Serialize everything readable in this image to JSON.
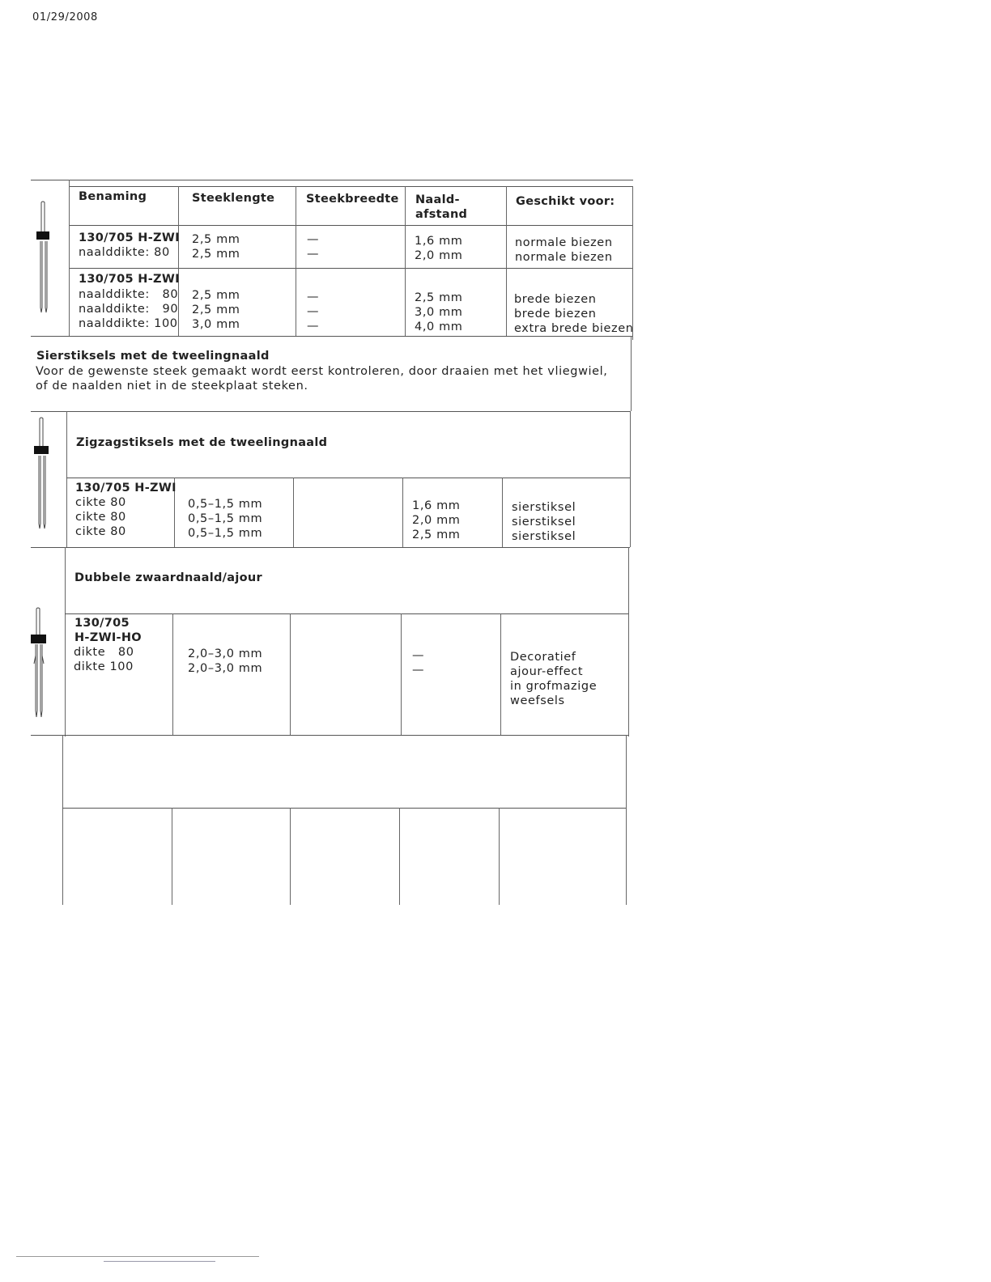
{
  "date": "01/29/2008",
  "headers": [
    "Benaming",
    "Steeklengte",
    "Steekbreedte",
    "Naald-\nafstand",
    "Geschikt voor:"
  ],
  "section1": {
    "row1": {
      "name": "130/705 H-ZWI",
      "sub": "naalddikte: 80",
      "length": "2,5 mm\n2,5 mm",
      "width": "—\n—",
      "distance": "1,6 mm\n2,0 mm",
      "use": "normale biezen\nnormale biezen"
    },
    "row2": {
      "name": "130/705 H-ZWI",
      "sub": "naalddikte:   80\nnaalddikte:   90\nnaalddikte: 100",
      "length": "2,5 mm\n2,5 mm\n3,0 mm",
      "width": "—\n—\n—",
      "distance": "2,5 mm\n3,0 mm\n4,0 mm",
      "use": "brede biezen\nbrede biezen\nextra brede biezen"
    }
  },
  "sierstiksels": {
    "title": "Siersti​ksels met de tweelingnaald",
    "text": "Voor de gewenste steek gemaakt wordt eerst kontroleren, door draaien met het vliegwiel,\nof de naalden niet in de steekplaat steken."
  },
  "zigzag": {
    "title": "Zigzagstiksels met de tweelingnaald",
    "name": "130/705 H-ZWI",
    "sub": "cikte 80\ncikte 80\ncikte 80",
    "length": "0,5–1,5 mm\n0,5–1,5 mm\n0,5–1,5 mm",
    "distance": "1,6 mm\n2,0 mm\n2,5 mm",
    "use": "sierstiksel\nsierstiksel\nsierstiksel"
  },
  "dubbele": {
    "title": "Dubbele zwaardnaald/ajour",
    "name": "130/705\nH-ZWI-HO",
    "sub": "dikte   80\ndikte 100",
    "length": "2,0–3,0 mm\n2,0–3,0 mm",
    "distance": "—\n—",
    "use": "Decoratief\najour-effect\nin grofmazige\nweefsels"
  }
}
